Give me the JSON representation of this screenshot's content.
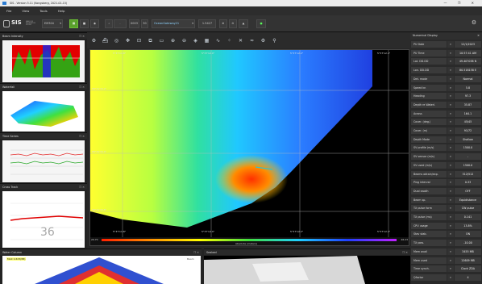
{
  "window": {
    "title": "SIS - Version 5.11 (Kongsberg, 2021-01-15)",
    "controls": "—  ❐  ✕"
  },
  "menu": [
    "File",
    "View",
    "Tools",
    "Help"
  ],
  "toolbar": {
    "logo": "SIS",
    "logo_sub": "SEAFLOOR INFORMATION SYSTEM",
    "vessel": "EM304",
    "spin1": "0003",
    "spin2": "30",
    "scale": "1.5427",
    "dropdown": "OceanGateway21"
  },
  "panels": {
    "beam": "Beam Intensity",
    "waterfall": "Waterfall",
    "timeseries": "Time Series",
    "crosstrack": "Cross Track",
    "watercolumn": "Water Column",
    "seabed": "Seabed",
    "numerical": "Numerical Display"
  },
  "crosstrack": {
    "value": "36"
  },
  "plot": {
    "colorbar_label": "Absolute (meters)",
    "colorbar_min": "29.70",
    "colorbar_max": "46.23",
    "lon_ticks": [
      "5°37'11.8\"",
      "5°37'12.0\"",
      "5°37'12.2\"",
      "5°37'12.4\""
    ],
    "lat_ticks": [
      "58°31'34.2\"",
      "58°31'34.0\"",
      "58°31'33.8\""
    ]
  },
  "watercolumn": {
    "label": "MAX 0.633(88)",
    "side": "Beam"
  },
  "numerical": [
    {
      "k": "PU Date",
      "v": "12/1/2023"
    },
    {
      "k": "PU Time",
      "v": "10:57:41 AM"
    },
    {
      "k": "Lat. DD.DD",
      "v": "49.407038 N"
    },
    {
      "k": "Lon. DD.DD",
      "v": "80.518158 E"
    },
    {
      "k": "Det. mode",
      "v": "Normal"
    },
    {
      "k": "Speed kn",
      "v": "5.8"
    },
    {
      "k": "Heading",
      "v": "97.3"
    },
    {
      "k": "Depth re Waterl.",
      "v": "35.87"
    },
    {
      "k": "Across",
      "v": "164.1"
    },
    {
      "k": "Cover. (deg.)",
      "v": "45/45"
    },
    {
      "k": "Cover. (m)",
      "v": "91/72"
    },
    {
      "k": "Depth Mode",
      "v": "Shallow"
    },
    {
      "k": "SV profile (m/s)",
      "v": "1500.0"
    },
    {
      "k": "SV sensor (m/s)",
      "v": "-"
    },
    {
      "k": "SV used (m/s)",
      "v": "1500.0"
    },
    {
      "k": "Beams obtain/exp.",
      "v": "512/512"
    },
    {
      "k": "Ping interval",
      "v": "0.33"
    },
    {
      "k": "Dual swath",
      "v": "OFF"
    },
    {
      "k": "Beam sp.",
      "v": "Equidistance"
    },
    {
      "k": "TX pulse form",
      "v": "CW pulse"
    },
    {
      "k": "TX pulse (ms)",
      "v": "0.141"
    },
    {
      "k": "CPU usage",
      "v": "13.8%"
    },
    {
      "k": "Stav stab.",
      "v": "ON"
    },
    {
      "k": "TX pow.",
      "v": "-10.00"
    },
    {
      "k": "Mem avail",
      "v": "3455 MB"
    },
    {
      "k": "Mem used",
      "v": "12609 MB"
    },
    {
      "k": "Time synch.",
      "v": "Clock ZDA"
    },
    {
      "k": "Qfactor",
      "v": "4"
    }
  ],
  "colors": {
    "accent": "#5aa02c",
    "panel": "#232323"
  }
}
